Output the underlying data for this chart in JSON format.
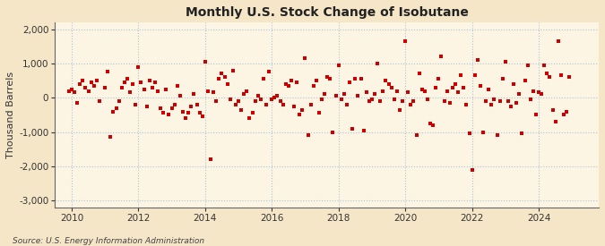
{
  "title": "Monthly U.S. Stock Change of Isobutane",
  "ylabel": "Thousand Barrels",
  "source": "Source: U.S. Energy Information Administration",
  "background_color": "#f5e6c8",
  "plot_background_color": "#fdf5e4",
  "grid_color": "#aac4d8",
  "dot_color": "#cc0000",
  "ylim": [
    -3200,
    2200
  ],
  "yticks": [
    -3000,
    -2000,
    -1000,
    0,
    1000,
    2000
  ],
  "xlim_start": 2009.5,
  "xlim_end": 2025.8,
  "xticks": [
    2010,
    2012,
    2014,
    2016,
    2018,
    2020,
    2022,
    2024
  ],
  "data": [
    [
      2009.917,
      200
    ],
    [
      2010.0,
      250
    ],
    [
      2010.083,
      150
    ],
    [
      2010.167,
      -150
    ],
    [
      2010.25,
      400
    ],
    [
      2010.333,
      500
    ],
    [
      2010.417,
      300
    ],
    [
      2010.5,
      200
    ],
    [
      2010.583,
      450
    ],
    [
      2010.667,
      350
    ],
    [
      2010.75,
      500
    ],
    [
      2010.833,
      -100
    ],
    [
      2011.0,
      300
    ],
    [
      2011.083,
      750
    ],
    [
      2011.167,
      -1150
    ],
    [
      2011.25,
      -400
    ],
    [
      2011.333,
      -300
    ],
    [
      2011.417,
      -100
    ],
    [
      2011.5,
      300
    ],
    [
      2011.583,
      450
    ],
    [
      2011.667,
      550
    ],
    [
      2011.75,
      150
    ],
    [
      2011.833,
      400
    ],
    [
      2011.917,
      -200
    ],
    [
      2012.0,
      900
    ],
    [
      2012.083,
      450
    ],
    [
      2012.167,
      250
    ],
    [
      2012.25,
      -250
    ],
    [
      2012.333,
      500
    ],
    [
      2012.417,
      300
    ],
    [
      2012.5,
      450
    ],
    [
      2012.583,
      200
    ],
    [
      2012.667,
      -300
    ],
    [
      2012.75,
      -450
    ],
    [
      2012.833,
      250
    ],
    [
      2012.917,
      -500
    ],
    [
      2013.0,
      -300
    ],
    [
      2013.083,
      -200
    ],
    [
      2013.167,
      350
    ],
    [
      2013.25,
      50
    ],
    [
      2013.333,
      -400
    ],
    [
      2013.417,
      -600
    ],
    [
      2013.5,
      -450
    ],
    [
      2013.583,
      -250
    ],
    [
      2013.667,
      100
    ],
    [
      2013.75,
      -200
    ],
    [
      2013.833,
      -450
    ],
    [
      2013.917,
      -550
    ],
    [
      2014.0,
      1050
    ],
    [
      2014.083,
      200
    ],
    [
      2014.167,
      -1800
    ],
    [
      2014.25,
      150
    ],
    [
      2014.333,
      -100
    ],
    [
      2014.417,
      550
    ],
    [
      2014.5,
      700
    ],
    [
      2014.583,
      600
    ],
    [
      2014.667,
      400
    ],
    [
      2014.75,
      -50
    ],
    [
      2014.833,
      800
    ],
    [
      2014.917,
      -200
    ],
    [
      2015.0,
      -100
    ],
    [
      2015.083,
      -350
    ],
    [
      2015.167,
      100
    ],
    [
      2015.25,
      200
    ],
    [
      2015.333,
      -600
    ],
    [
      2015.417,
      -450
    ],
    [
      2015.5,
      -100
    ],
    [
      2015.583,
      50
    ],
    [
      2015.667,
      -50
    ],
    [
      2015.75,
      550
    ],
    [
      2015.833,
      -200
    ],
    [
      2015.917,
      750
    ],
    [
      2016.0,
      -50
    ],
    [
      2016.083,
      0
    ],
    [
      2016.167,
      50
    ],
    [
      2016.25,
      -100
    ],
    [
      2016.333,
      -200
    ],
    [
      2016.417,
      400
    ],
    [
      2016.5,
      350
    ],
    [
      2016.583,
      500
    ],
    [
      2016.667,
      -250
    ],
    [
      2016.75,
      450
    ],
    [
      2016.833,
      -500
    ],
    [
      2016.917,
      -350
    ],
    [
      2017.0,
      1150
    ],
    [
      2017.083,
      -1100
    ],
    [
      2017.167,
      -200
    ],
    [
      2017.25,
      350
    ],
    [
      2017.333,
      500
    ],
    [
      2017.417,
      -450
    ],
    [
      2017.5,
      -50
    ],
    [
      2017.583,
      100
    ],
    [
      2017.667,
      600
    ],
    [
      2017.75,
      550
    ],
    [
      2017.833,
      -1000
    ],
    [
      2017.917,
      50
    ],
    [
      2018.0,
      950
    ],
    [
      2018.083,
      -50
    ],
    [
      2018.167,
      100
    ],
    [
      2018.25,
      -200
    ],
    [
      2018.333,
      450
    ],
    [
      2018.417,
      -900
    ],
    [
      2018.5,
      550
    ],
    [
      2018.583,
      50
    ],
    [
      2018.667,
      550
    ],
    [
      2018.75,
      -950
    ],
    [
      2018.833,
      150
    ],
    [
      2018.917,
      -100
    ],
    [
      2019.0,
      -50
    ],
    [
      2019.083,
      100
    ],
    [
      2019.167,
      1000
    ],
    [
      2019.25,
      -100
    ],
    [
      2019.333,
      200
    ],
    [
      2019.417,
      500
    ],
    [
      2019.5,
      400
    ],
    [
      2019.583,
      300
    ],
    [
      2019.667,
      -50
    ],
    [
      2019.75,
      200
    ],
    [
      2019.833,
      -350
    ],
    [
      2019.917,
      -100
    ],
    [
      2020.0,
      1650
    ],
    [
      2020.083,
      150
    ],
    [
      2020.167,
      -200
    ],
    [
      2020.25,
      -100
    ],
    [
      2020.333,
      -1100
    ],
    [
      2020.417,
      700
    ],
    [
      2020.5,
      250
    ],
    [
      2020.583,
      200
    ],
    [
      2020.667,
      -50
    ],
    [
      2020.75,
      -750
    ],
    [
      2020.833,
      -800
    ],
    [
      2020.917,
      300
    ],
    [
      2021.0,
      550
    ],
    [
      2021.083,
      1200
    ],
    [
      2021.167,
      -100
    ],
    [
      2021.25,
      200
    ],
    [
      2021.333,
      -150
    ],
    [
      2021.417,
      300
    ],
    [
      2021.5,
      400
    ],
    [
      2021.583,
      150
    ],
    [
      2021.667,
      650
    ],
    [
      2021.75,
      300
    ],
    [
      2021.833,
      -200
    ],
    [
      2021.917,
      -1050
    ],
    [
      2022.0,
      -2100
    ],
    [
      2022.083,
      650
    ],
    [
      2022.167,
      1100
    ],
    [
      2022.25,
      350
    ],
    [
      2022.333,
      -1000
    ],
    [
      2022.417,
      -100
    ],
    [
      2022.5,
      250
    ],
    [
      2022.583,
      -200
    ],
    [
      2022.667,
      -50
    ],
    [
      2022.75,
      -1100
    ],
    [
      2022.833,
      -100
    ],
    [
      2022.917,
      550
    ],
    [
      2023.0,
      1050
    ],
    [
      2023.083,
      -100
    ],
    [
      2023.167,
      -250
    ],
    [
      2023.25,
      400
    ],
    [
      2023.333,
      -150
    ],
    [
      2023.417,
      100
    ],
    [
      2023.5,
      -1050
    ],
    [
      2023.583,
      500
    ],
    [
      2023.667,
      950
    ],
    [
      2023.75,
      -50
    ],
    [
      2023.833,
      200
    ],
    [
      2023.917,
      -500
    ],
    [
      2024.0,
      150
    ],
    [
      2024.083,
      100
    ],
    [
      2024.167,
      950
    ],
    [
      2024.25,
      700
    ],
    [
      2024.333,
      600
    ],
    [
      2024.417,
      -350
    ],
    [
      2024.5,
      -700
    ],
    [
      2024.583,
      1650
    ],
    [
      2024.667,
      650
    ],
    [
      2024.75,
      -500
    ],
    [
      2024.833,
      -400
    ],
    [
      2024.917,
      600
    ]
  ]
}
